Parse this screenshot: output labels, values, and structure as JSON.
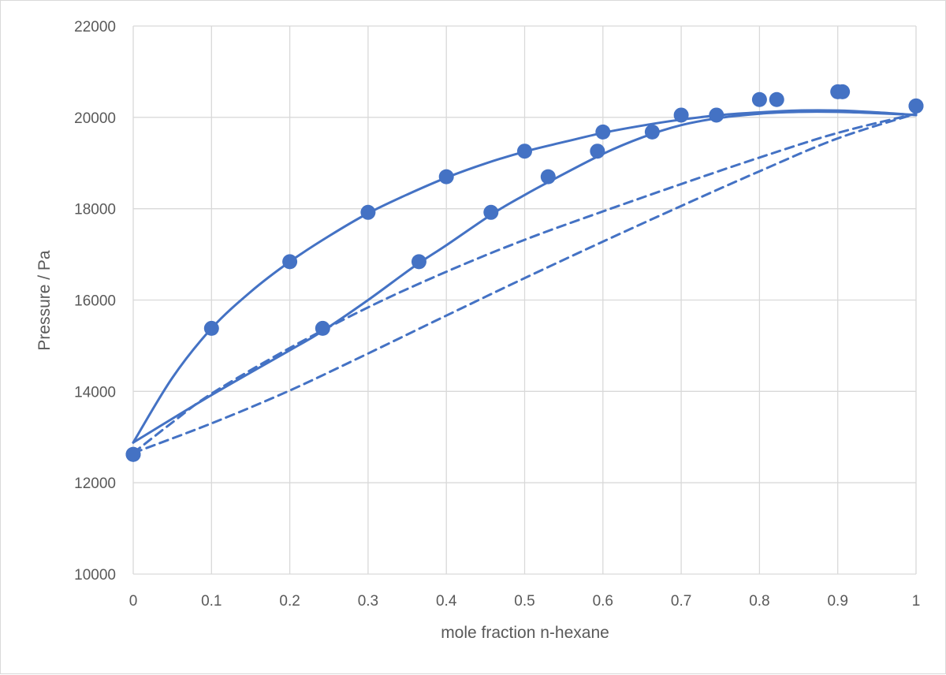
{
  "chart_data": {
    "type": "scatter",
    "title": "",
    "xlabel": "mole fraction n-hexane",
    "ylabel": "Pressure / Pa",
    "xlim": [
      0,
      1
    ],
    "ylim": [
      10000,
      22000
    ],
    "x_ticks": [
      "0",
      "0.1",
      "0.2",
      "0.3",
      "0.4",
      "0.5",
      "0.6",
      "0.7",
      "0.8",
      "0.9",
      "1"
    ],
    "y_ticks": [
      "10000",
      "12000",
      "14000",
      "16000",
      "18000",
      "20000",
      "22000"
    ],
    "grid": true,
    "legend": "none",
    "color": "#4472c4",
    "series": [
      {
        "kind": "points",
        "points": [
          [
            0,
            12620
          ],
          [
            0.1,
            15380
          ],
          [
            0.2,
            16840
          ],
          [
            0.3,
            17920
          ],
          [
            0.4,
            18700
          ],
          [
            0.5,
            19260
          ],
          [
            0.6,
            19680
          ],
          [
            0.7,
            20050
          ],
          [
            0.8,
            20390
          ],
          [
            0.9,
            20560
          ],
          [
            1,
            20250
          ]
        ]
      },
      {
        "kind": "points",
        "points": [
          [
            0,
            12620
          ],
          [
            0.242,
            15380
          ],
          [
            0.365,
            16840
          ],
          [
            0.457,
            17920
          ],
          [
            0.53,
            18700
          ],
          [
            0.593,
            19260
          ],
          [
            0.663,
            19680
          ],
          [
            0.745,
            20050
          ],
          [
            0.822,
            20390
          ],
          [
            0.906,
            20560
          ],
          [
            1,
            20250
          ]
        ]
      },
      {
        "kind": "solid",
        "points": [
          [
            0,
            12880
          ],
          [
            0.05,
            14300
          ],
          [
            0.1,
            15380
          ],
          [
            0.15,
            16180
          ],
          [
            0.2,
            16840
          ],
          [
            0.25,
            17400
          ],
          [
            0.3,
            17900
          ],
          [
            0.35,
            18310
          ],
          [
            0.4,
            18680
          ],
          [
            0.45,
            18990
          ],
          [
            0.5,
            19250
          ],
          [
            0.55,
            19460
          ],
          [
            0.6,
            19660
          ],
          [
            0.65,
            19820
          ],
          [
            0.7,
            19950
          ],
          [
            0.75,
            20050
          ],
          [
            0.8,
            20110
          ],
          [
            0.85,
            20150
          ],
          [
            0.9,
            20150
          ],
          [
            0.95,
            20110
          ],
          [
            1,
            20050
          ]
        ]
      },
      {
        "kind": "solid",
        "points": [
          [
            0,
            12880
          ],
          [
            0.1,
            13920
          ],
          [
            0.2,
            14900
          ],
          [
            0.24,
            15300
          ],
          [
            0.3,
            16000
          ],
          [
            0.36,
            16750
          ],
          [
            0.4,
            17200
          ],
          [
            0.46,
            17900
          ],
          [
            0.5,
            18300
          ],
          [
            0.53,
            18580
          ],
          [
            0.6,
            19200
          ],
          [
            0.65,
            19560
          ],
          [
            0.7,
            19830
          ],
          [
            0.75,
            19990
          ],
          [
            0.8,
            20080
          ],
          [
            0.85,
            20120
          ],
          [
            0.9,
            20120
          ],
          [
            0.95,
            20090
          ],
          [
            1,
            20050
          ]
        ]
      },
      {
        "kind": "dashed",
        "points": [
          [
            0,
            12650
          ],
          [
            0.05,
            13320
          ],
          [
            0.1,
            13950
          ],
          [
            0.2,
            14950
          ],
          [
            0.3,
            15840
          ],
          [
            0.4,
            16620
          ],
          [
            0.5,
            17320
          ],
          [
            0.6,
            17940
          ],
          [
            0.7,
            18540
          ],
          [
            0.8,
            19120
          ],
          [
            0.9,
            19660
          ],
          [
            1,
            20080
          ]
        ]
      },
      {
        "kind": "dashed",
        "points": [
          [
            0,
            12650
          ],
          [
            0.1,
            13300
          ],
          [
            0.2,
            14020
          ],
          [
            0.3,
            14830
          ],
          [
            0.4,
            15660
          ],
          [
            0.5,
            16480
          ],
          [
            0.6,
            17280
          ],
          [
            0.7,
            18060
          ],
          [
            0.8,
            18820
          ],
          [
            0.9,
            19540
          ],
          [
            1,
            20080
          ]
        ]
      }
    ]
  }
}
